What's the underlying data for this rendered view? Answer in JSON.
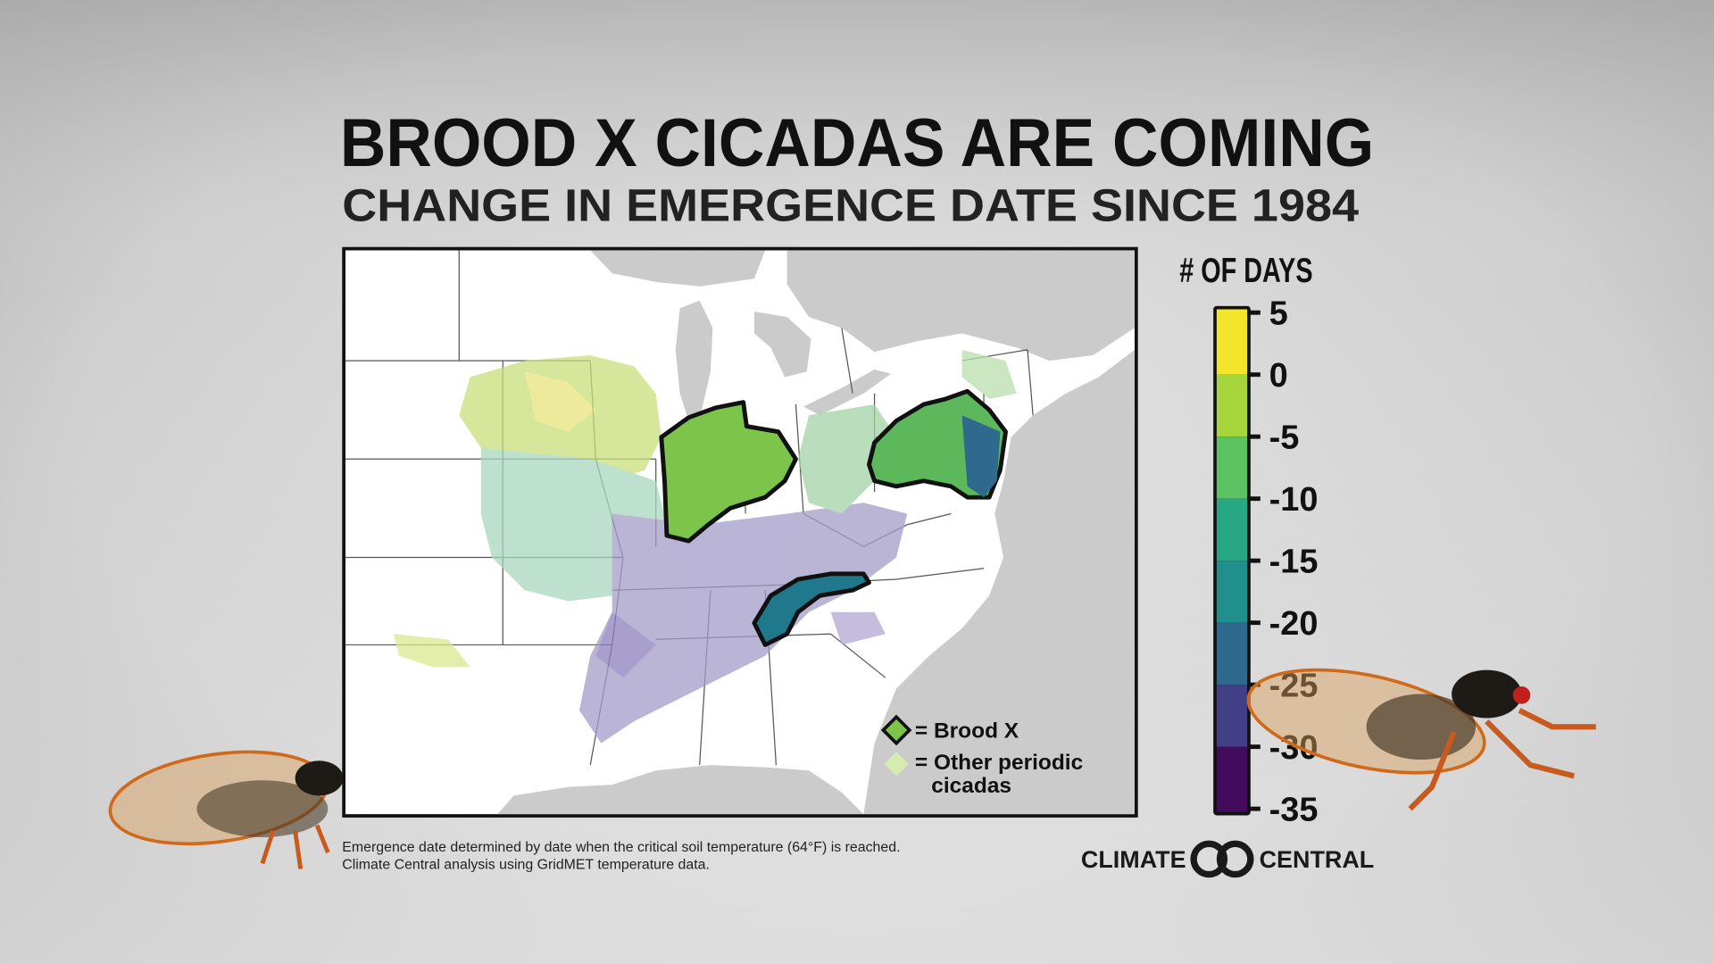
{
  "title": "BROOD X CICADAS ARE COMING",
  "subtitle": "CHANGE IN EMERGENCE DATE SINCE 1984",
  "colorbar": {
    "title": "# OF DAYS",
    "ticks": [
      5,
      0,
      -5,
      -10,
      -15,
      -20,
      -25,
      -30,
      -35
    ],
    "colors": [
      "#f3e52b",
      "#a6d63c",
      "#5cc160",
      "#27a882",
      "#20908c",
      "#30698e",
      "#433f86",
      "#430b5c"
    ]
  },
  "legend": {
    "brood_x": {
      "label": "= Brood X",
      "color": "#7cc44a"
    },
    "other": {
      "label_lines": [
        "= Other periodic",
        "cicadas"
      ],
      "color": "#d4ecb0"
    }
  },
  "footnote": [
    "Emergence date determined by date when the critical soil temperature (64°F) is reached.",
    "Climate Central analysis using GridMET temperature data."
  ],
  "logo": {
    "left": "CLIMATE",
    "right": "CENTRAL"
  }
}
